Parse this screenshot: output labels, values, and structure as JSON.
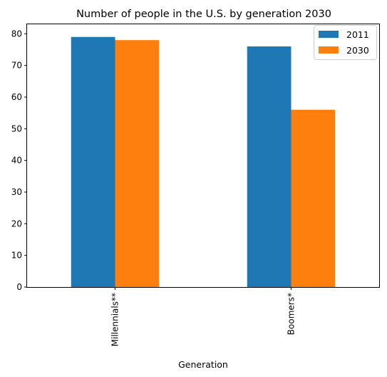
{
  "chart_data": {
    "type": "bar",
    "title": "Number of people in the U.S. by generation 2030",
    "xlabel": "Generation",
    "ylabel": "",
    "categories": [
      "Millennials**",
      "Boomers*"
    ],
    "series": [
      {
        "name": "2011",
        "values": [
          79,
          76
        ],
        "color": "#1f77b4"
      },
      {
        "name": "2030",
        "values": [
          78,
          56
        ],
        "color": "#ff7f0e"
      }
    ],
    "ylim": [
      0,
      83
    ],
    "yticks": [
      0,
      10,
      20,
      30,
      40,
      50,
      60,
      70,
      80
    ],
    "grid": false,
    "legend_position": "top-right"
  }
}
